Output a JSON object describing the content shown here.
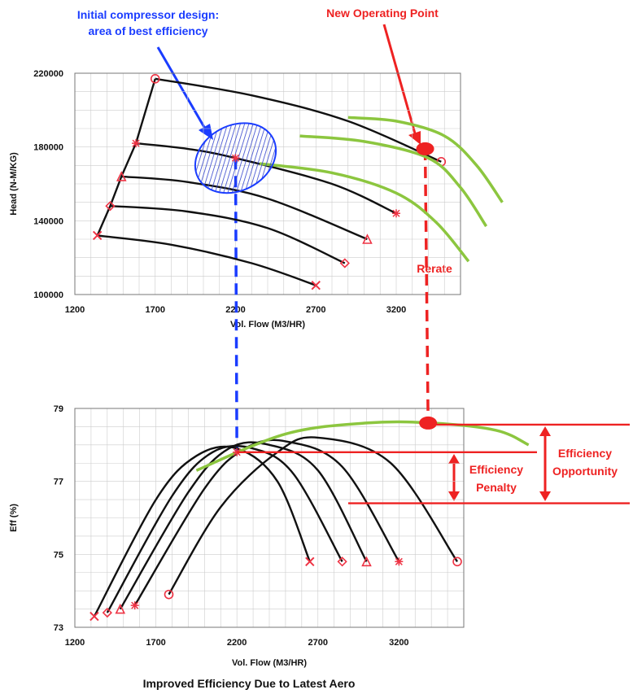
{
  "chart_data": [
    {
      "type": "line",
      "id": "head",
      "xlabel": "Vol. Flow (M3/HR)",
      "ylabel": "Head (N-M/KG)",
      "xlim": [
        1200,
        3600
      ],
      "ylim": [
        100000,
        220000
      ],
      "xticks": [
        1200,
        1700,
        2200,
        2700,
        3200
      ],
      "yticks": [
        100000,
        140000,
        180000,
        220000
      ],
      "grid": true,
      "series": [
        {
          "marker": "circle",
          "x": [
            1700,
            2300,
            2900,
            3480
          ],
          "y": [
            217000,
            208000,
            194000,
            172000
          ]
        },
        {
          "marker": "star",
          "x": [
            1580,
            1900,
            2200,
            2800,
            3200
          ],
          "y": [
            182000,
            179000,
            174000,
            160000,
            144000
          ]
        },
        {
          "marker": "triangle",
          "x": [
            1490,
            1900,
            2400,
            3020
          ],
          "y": [
            164000,
            161000,
            152000,
            130000
          ]
        },
        {
          "marker": "diamond",
          "x": [
            1420,
            1900,
            2400,
            2880
          ],
          "y": [
            148000,
            145000,
            136000,
            117000
          ]
        },
        {
          "marker": "x",
          "x": [
            1340,
            1800,
            2300,
            2700
          ],
          "y": [
            132000,
            127000,
            117000,
            105000
          ]
        }
      ],
      "surge_line": {
        "x": [
          1340,
          1420,
          1490,
          1580,
          1700
        ],
        "y": [
          132000,
          148000,
          164000,
          182000,
          217000
        ]
      },
      "new_curves": [
        {
          "x": [
            2900,
            3200,
            3500,
            3700,
            3860
          ],
          "y": [
            196000,
            194000,
            186000,
            170000,
            150000
          ]
        },
        {
          "x": [
            2600,
            3000,
            3400,
            3600,
            3760
          ],
          "y": [
            186000,
            183000,
            174000,
            158000,
            137000
          ]
        },
        {
          "x": [
            2350,
            2800,
            3200,
            3450,
            3650
          ],
          "y": [
            171000,
            166000,
            155000,
            139000,
            118000
          ]
        }
      ],
      "best_efficiency_point": {
        "x": 2200,
        "y": 174000
      },
      "new_operating_point": {
        "x": 3380,
        "y": 179000
      }
    },
    {
      "type": "line",
      "id": "efficiency",
      "xlabel": "Vol. Flow (M3/HR)",
      "ylabel": "Eff (%)",
      "xlim": [
        1200,
        3600
      ],
      "ylim": [
        73,
        79
      ],
      "xticks": [
        1200,
        1700,
        2200,
        2700,
        3200
      ],
      "yticks": [
        73,
        75,
        77,
        79
      ],
      "grid": true,
      "series": [
        {
          "marker": "x",
          "x": [
            1320,
            1700,
            1950,
            2200,
            2450,
            2650
          ],
          "y": [
            73.3,
            76.5,
            77.7,
            77.9,
            77.0,
            74.8
          ]
        },
        {
          "marker": "diamond",
          "x": [
            1400,
            1800,
            2050,
            2300,
            2550,
            2850
          ],
          "y": [
            73.4,
            76.6,
            77.8,
            77.9,
            77.2,
            74.8
          ]
        },
        {
          "marker": "triangle",
          "x": [
            1480,
            1900,
            2150,
            2400,
            2700,
            3000
          ],
          "y": [
            73.5,
            76.7,
            77.9,
            78.0,
            77.3,
            74.8
          ]
        },
        {
          "marker": "star",
          "x": [
            1570,
            2000,
            2250,
            2500,
            2850,
            3200
          ],
          "y": [
            73.6,
            76.8,
            77.9,
            78.1,
            77.4,
            74.8
          ]
        },
        {
          "marker": "circle",
          "x": [
            1780,
            2100,
            2450,
            2700,
            3150,
            3560
          ],
          "y": [
            73.9,
            76.3,
            77.8,
            78.2,
            77.5,
            74.8
          ]
        }
      ],
      "new_curve": {
        "x": [
          1950,
          2500,
          3000,
          3400,
          3800,
          4000
        ],
        "y": [
          77.3,
          78.3,
          78.6,
          78.6,
          78.4,
          78.0
        ]
      },
      "best_efficiency_point": {
        "x": 2200,
        "y": 77.8
      },
      "new_operating_point": {
        "x": 3380,
        "y": 78.6
      }
    }
  ],
  "annotations": {
    "initial_design_line1": "Initial compressor design:",
    "initial_design_line2": "area of best efficiency",
    "new_operating_point": "New Operating Point",
    "rerate": "Rerate",
    "efficiency_penalty_line1": "Efficiency",
    "efficiency_penalty_line2": "Penalty",
    "efficiency_opportunity_line1": "Efficiency",
    "efficiency_opportunity_line2": "Opportunity",
    "caption": "Improved Efficiency Due to Latest Aero"
  },
  "colors": {
    "curve": "#111111",
    "new_curve": "#8cc63f",
    "marker": "#ee3344",
    "annotation_red": "#ee2222",
    "annotation_blue": "#1a3cff",
    "grid": "#cccccc"
  }
}
